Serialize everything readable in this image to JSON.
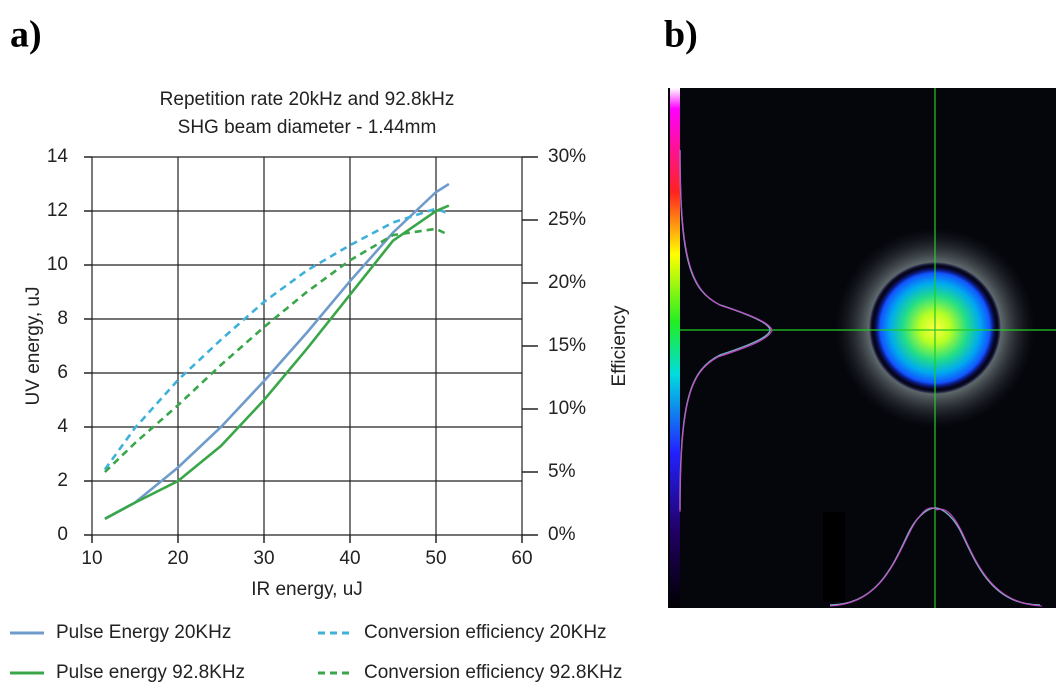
{
  "panel_labels": [
    "a)",
    "b)"
  ],
  "chart_data": {
    "type": "line",
    "title": "Repetition rate 20kHz and 92.8kHz",
    "subtitle": "SHG beam diameter - 1.44mm",
    "xlabel": "IR energy, uJ",
    "ylabel": "UV energy, uJ",
    "y2label": "Efficiency",
    "x": [
      11.5,
      15,
      20,
      25,
      30,
      35,
      40,
      45,
      50,
      51.5
    ],
    "series": [
      {
        "name": "Pulse Energy 20KHz",
        "color": "#6f9bcb",
        "dashed": false,
        "values": [
          0.6,
          1.2,
          2.5,
          4.0,
          5.7,
          7.5,
          9.4,
          11.2,
          12.7,
          13.0
        ]
      },
      {
        "name": "Conversion efficiency 20KHz",
        "color": "#3fb1d9",
        "dashed": true,
        "axis": "y2",
        "values": [
          5.2,
          8.5,
          12.3,
          15.5,
          18.5,
          21.0,
          23.0,
          24.8,
          25.9,
          25.5
        ]
      },
      {
        "name": "Pulse energy 92.8KHz",
        "color": "#3aa64a",
        "dashed": false,
        "values": [
          0.6,
          1.2,
          2.0,
          3.3,
          5.0,
          6.9,
          8.9,
          10.9,
          12.0,
          12.2
        ]
      },
      {
        "name": "Conversion efficiency 92.8KHz",
        "color": "#3aa64a",
        "dashed": true,
        "axis": "y2",
        "values": [
          5.0,
          7.3,
          10.3,
          13.5,
          16.5,
          19.3,
          21.8,
          23.8,
          24.3,
          23.8
        ]
      }
    ],
    "xlim": [
      10,
      60
    ],
    "xticks": [
      10,
      20,
      30,
      40,
      50,
      60
    ],
    "ylim": [
      0,
      14
    ],
    "yticks": [
      0,
      2,
      4,
      6,
      8,
      10,
      12,
      14
    ],
    "y2lim": [
      0,
      30
    ],
    "y2ticks": [
      {
        "value": 0,
        "label": "0%"
      },
      {
        "value": 5,
        "label": "5%"
      },
      {
        "value": 10,
        "label": "10%"
      },
      {
        "value": 15,
        "label": "15%"
      },
      {
        "value": 20,
        "label": "20%"
      },
      {
        "value": 25,
        "label": "25%"
      },
      {
        "value": 30,
        "label": "30%"
      }
    ],
    "grid": true
  }
}
